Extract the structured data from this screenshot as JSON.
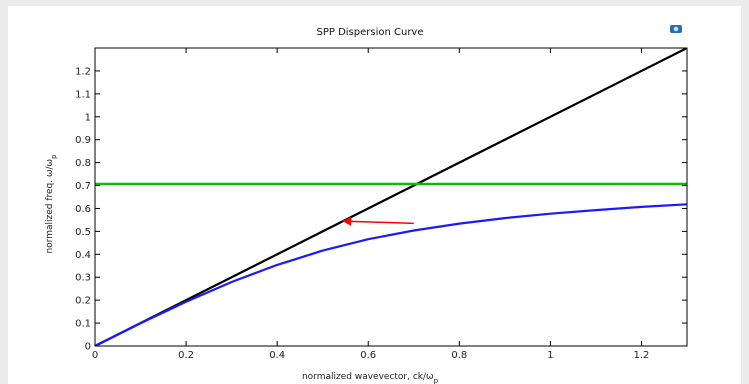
{
  "chart_data": {
    "type": "line",
    "title": "SPP Dispersion Curve",
    "xlabel": "normalized wavevector, ck/ω",
    "xlabel_sub": "p",
    "ylabel": "normalized freq. ω/ω",
    "ylabel_sub": "p",
    "xlim": [
      0,
      1.3
    ],
    "ylim": [
      0,
      1.3
    ],
    "x_ticks": [
      0,
      0.2,
      0.4,
      0.6,
      0.8,
      1,
      1.2
    ],
    "y_ticks": [
      0,
      0.1,
      0.2,
      0.3,
      0.4,
      0.5,
      0.6,
      0.7,
      0.8,
      0.9,
      1,
      1.1,
      1.2
    ],
    "grid": false,
    "series": [
      {
        "color": "#000000",
        "x": [
          0,
          1.3
        ],
        "y": [
          0,
          1.3
        ]
      },
      {
        "color": "#00c000",
        "x": [
          0,
          1.3
        ],
        "y": [
          0.707,
          0.707
        ]
      },
      {
        "color": "#1a1aff",
        "x": [
          0,
          0.1,
          0.2,
          0.3,
          0.4,
          0.5,
          0.6,
          0.7,
          0.8,
          0.9,
          1.0,
          1.1,
          1.2,
          1.3
        ],
        "y": [
          0,
          0.099,
          0.193,
          0.279,
          0.354,
          0.416,
          0.466,
          0.504,
          0.534,
          0.558,
          0.577,
          0.593,
          0.607,
          0.618
        ]
      }
    ],
    "annotations": [
      {
        "type": "arrow",
        "color": "#ff0000",
        "from": [
          0.7,
          0.535
        ],
        "to": [
          0.545,
          0.545
        ]
      }
    ]
  },
  "toolbar": {
    "icon": "camera-icon"
  }
}
